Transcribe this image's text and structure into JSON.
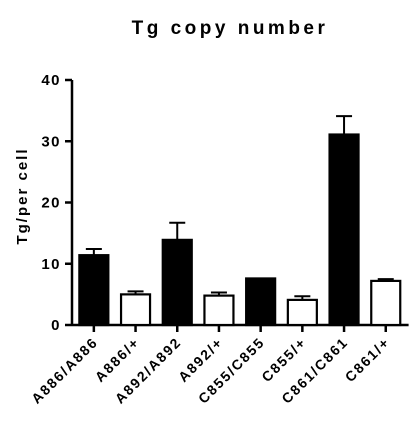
{
  "chart_data": {
    "type": "bar",
    "title": "Tg copy number",
    "xlabel": "",
    "ylabel": "Tg/per cell",
    "ylim": [
      0,
      40
    ],
    "yticks": [
      0,
      10,
      20,
      30,
      40
    ],
    "grid": false,
    "legend": "none",
    "categories": [
      "A886/A886",
      "A886/+",
      "A892/A892",
      "A892/+",
      "C855/C855",
      "C855/+",
      "C861/C861",
      "C861/+"
    ],
    "values": [
      11.4,
      5.0,
      13.9,
      4.8,
      7.6,
      4.1,
      31.1,
      7.2
    ],
    "errors": [
      1.0,
      0.5,
      2.8,
      0.5,
      0,
      0.6,
      3.0,
      0.3
    ],
    "fills": [
      "#000000",
      "#ffffff",
      "#000000",
      "#ffffff",
      "#000000",
      "#ffffff",
      "#000000",
      "#ffffff"
    ],
    "stroke_color": "#000000"
  }
}
